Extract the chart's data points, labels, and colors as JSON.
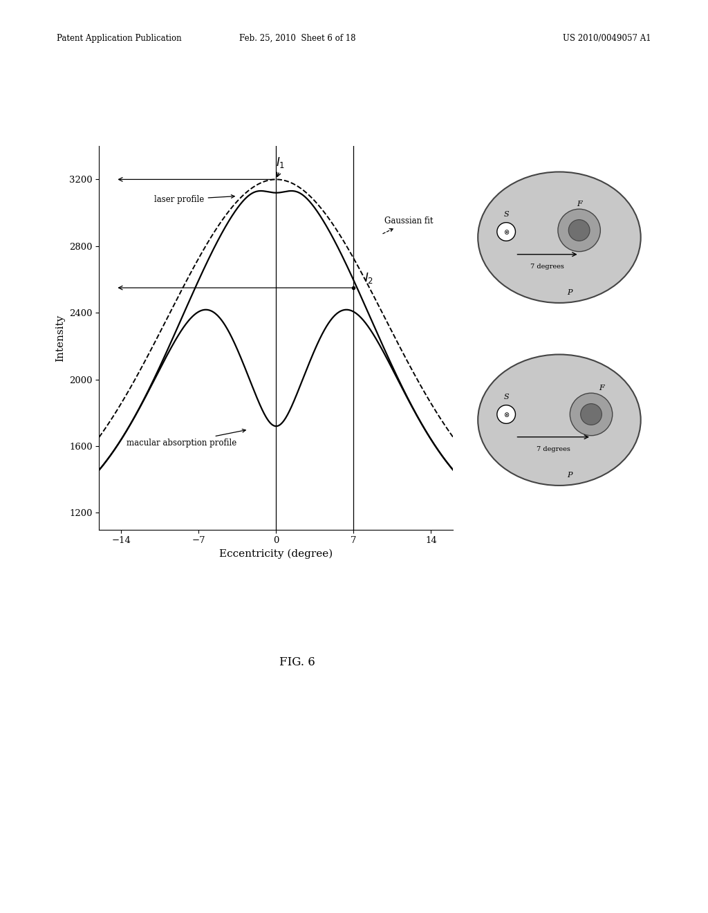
{
  "title": "",
  "xlabel": "Eccentricity (degree)",
  "ylabel": "Intensity",
  "xlim": [
    -16,
    16
  ],
  "ylim": [
    1100,
    3400
  ],
  "xticks": [
    -14,
    -7,
    0,
    7,
    14
  ],
  "yticks": [
    1200,
    1600,
    2000,
    2400,
    2800,
    3200
  ],
  "I1_y": 3200,
  "I2_x": 7,
  "I2_y": 2550,
  "bg_color": "#ffffff",
  "patent_header_left": "Patent Application Publication",
  "patent_header_mid": "Feb. 25, 2010  Sheet 6 of 18",
  "patent_header_right": "US 2010/0049057 A1",
  "fig_label": "FIG. 6",
  "eye_bg": "#c8c8c8",
  "eye_fovea_outer": "#a0a0a0",
  "eye_fovea_inner": "#707070"
}
